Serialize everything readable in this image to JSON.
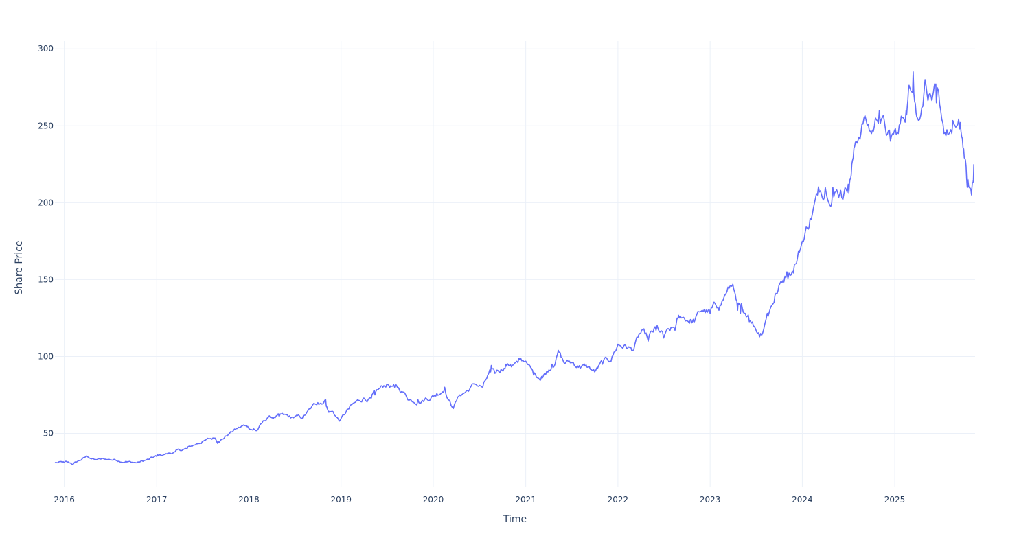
{
  "chart_data": {
    "type": "line",
    "xlabel": "Time",
    "ylabel": "Share Price",
    "xlim": [
      "2015-11-25",
      "2025-11-15"
    ],
    "ylim": [
      15,
      305
    ],
    "x_ticks": [
      "2016",
      "2017",
      "2018",
      "2019",
      "2020",
      "2021",
      "2022",
      "2023",
      "2024",
      "2025"
    ],
    "y_ticks": [
      50,
      100,
      150,
      200,
      250,
      300
    ],
    "grid": true,
    "legend": "none",
    "colors": {
      "line": "#636efa",
      "grid": "#ebf0f8",
      "text": "#2a3f5f"
    },
    "series": [
      {
        "x": [
          "2015-11-25",
          "2016-01-01",
          "2016-02-05",
          "2016-04-01",
          "2016-05-01",
          "2016-06-15",
          "2016-07-20",
          "2016-09-01",
          "2016-10-15",
          "2016-12-01",
          "2017-01-01",
          "2017-03-15",
          "2017-05-01",
          "2017-07-01",
          "2017-08-20",
          "2017-09-01",
          "2017-11-01",
          "2017-12-15",
          "2018-01-20",
          "2018-02-01",
          "2018-03-15",
          "2018-05-01",
          "2018-06-15",
          "2018-08-01",
          "2018-10-01",
          "2018-11-01",
          "2018-11-10",
          "2018-12-01",
          "2018-12-26",
          "2019-02-01",
          "2019-04-01",
          "2019-05-01",
          "2019-05-15",
          "2019-07-01",
          "2019-08-01",
          "2019-09-01",
          "2019-10-01",
          "2019-11-01",
          "2019-12-01",
          "2020-01-15",
          "2020-02-15",
          "2020-03-16",
          "2020-04-15",
          "2020-05-15",
          "2020-06-15",
          "2020-07-15",
          "2020-08-15",
          "2020-09-01",
          "2020-10-15",
          "2020-11-01",
          "2020-12-01",
          "2021-01-01",
          "2021-02-01",
          "2021-03-05",
          "2021-04-15",
          "2021-05-10",
          "2021-06-01",
          "2021-07-01",
          "2021-08-01",
          "2021-09-01",
          "2021-10-01",
          "2021-11-01",
          "2021-12-01",
          "2022-01-01",
          "2022-02-01",
          "2022-03-01",
          "2022-04-01",
          "2022-05-01",
          "2022-06-01",
          "2022-07-01",
          "2022-08-15",
          "2022-09-01",
          "2022-10-15",
          "2022-11-01",
          "2022-12-01",
          "2023-01-01",
          "2023-02-01",
          "2023-03-01",
          "2023-04-01",
          "2023-04-20",
          "2023-05-01",
          "2023-06-01",
          "2023-07-20",
          "2023-08-15",
          "2023-09-15",
          "2023-11-01",
          "2023-12-01",
          "2024-01-01",
          "2024-02-01",
          "2024-03-01",
          "2024-04-01",
          "2024-05-01",
          "2024-06-01",
          "2024-07-01",
          "2024-07-15",
          "2024-08-01",
          "2024-09-01",
          "2024-10-01",
          "2024-11-01",
          "2024-12-15",
          "2025-01-15",
          "2025-02-15",
          "2025-03-01",
          "2025-03-15",
          "2025-04-01",
          "2025-05-01",
          "2025-06-01",
          "2025-06-15",
          "2025-07-15",
          "2025-08-15",
          "2025-09-15",
          "2025-10-01",
          "2025-10-15",
          "2025-11-01",
          "2025-11-10"
        ],
        "y": [
          31,
          31,
          30,
          35,
          33,
          33,
          33,
          32,
          31,
          33,
          35,
          38,
          40,
          45,
          47,
          45,
          52,
          55,
          53,
          52,
          60,
          61,
          60,
          60,
          70,
          72,
          65,
          64,
          58,
          66,
          73,
          73,
          75,
          82,
          80,
          77,
          72,
          72,
          73,
          76,
          80,
          67,
          75,
          78,
          82,
          80,
          90,
          89,
          95,
          95,
          96,
          97,
          88,
          87,
          95,
          104,
          96,
          96,
          94,
          93,
          90,
          95,
          97,
          108,
          107,
          104,
          115,
          110,
          117,
          112,
          117,
          125,
          124,
          123,
          130,
          128,
          132,
          140,
          147,
          130,
          128,
          127,
          115,
          128,
          140,
          155,
          160,
          175,
          190,
          205,
          210,
          210,
          208,
          212,
          225,
          240,
          255,
          245,
          260,
          240,
          245,
          260,
          275,
          285,
          255,
          280,
          270,
          265,
          245,
          245,
          248,
          235,
          210,
          205,
          225
        ],
        "noise_amplitude": 2
      }
    ]
  }
}
